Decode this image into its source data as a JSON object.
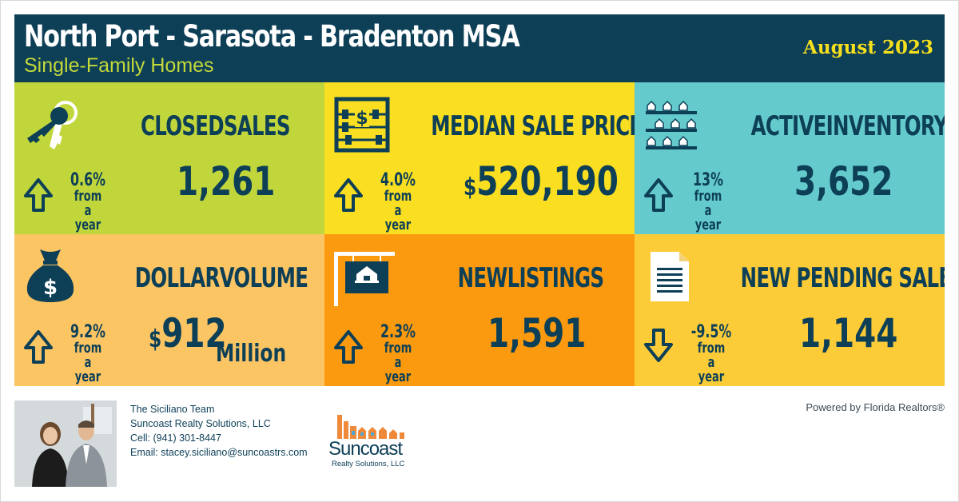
{
  "header": {
    "title": "North Port - Sarasota - Bradenton MSA",
    "subtitle": "Single-Family Homes",
    "date": "August 2023"
  },
  "tiles": [
    {
      "label": "CLOSEDSALES",
      "value": "1,261",
      "currency": "",
      "unit": "",
      "change": "0.6%",
      "change_sub": "from a year ago",
      "direction": "up",
      "icon": "keys-icon",
      "bg": "#c0d63b"
    },
    {
      "label": "MEDIAN SALE PRICE",
      "value": "520,190",
      "currency": "$",
      "unit": "",
      "change": "4.0%",
      "change_sub": "from a year ago",
      "direction": "up",
      "icon": "abacus-icon",
      "bg": "#f9de21"
    },
    {
      "label": "ACTIVEINVENTORY",
      "value": "3,652",
      "currency": "",
      "unit": "",
      "change": "13%",
      "change_sub": "from a year ago",
      "direction": "up",
      "icon": "houses-icon",
      "bg": "#64cacb"
    },
    {
      "label": "DOLLARVOLUME",
      "value": "912",
      "currency": "$",
      "unit": "Million",
      "change": "9.2%",
      "change_sub": "from a year ago",
      "direction": "up",
      "icon": "money-bag-icon",
      "bg": "#fbc564"
    },
    {
      "label": "NEWLISTINGS",
      "value": "1,591",
      "currency": "",
      "unit": "",
      "change": "2.3%",
      "change_sub": "from a year ago",
      "direction": "up",
      "icon": "sign-icon",
      "bg": "#fb9a0f"
    },
    {
      "label": "NEW PENDING SALES",
      "value": "1,144",
      "currency": "",
      "unit": "",
      "change": "-9.5%",
      "change_sub": "from a year ago",
      "direction": "down",
      "icon": "document-icon",
      "bg": "#fbcc38"
    }
  ],
  "contact": {
    "team": "The Siciliano Team",
    "company": "Suncoast Realty Solutions, LLC",
    "cell": "Cell: (941) 301-8447",
    "email": "Email: stacey.siciliano@suncoastrs.com"
  },
  "logo": {
    "name": "Suncoast",
    "sub": "Realty Solutions, LLC"
  },
  "powered_by": "Powered by Florida Realtors®",
  "colors": {
    "navy": "#0d3f57",
    "lime": "#c4d93a",
    "yellow": "#f6df1d"
  }
}
